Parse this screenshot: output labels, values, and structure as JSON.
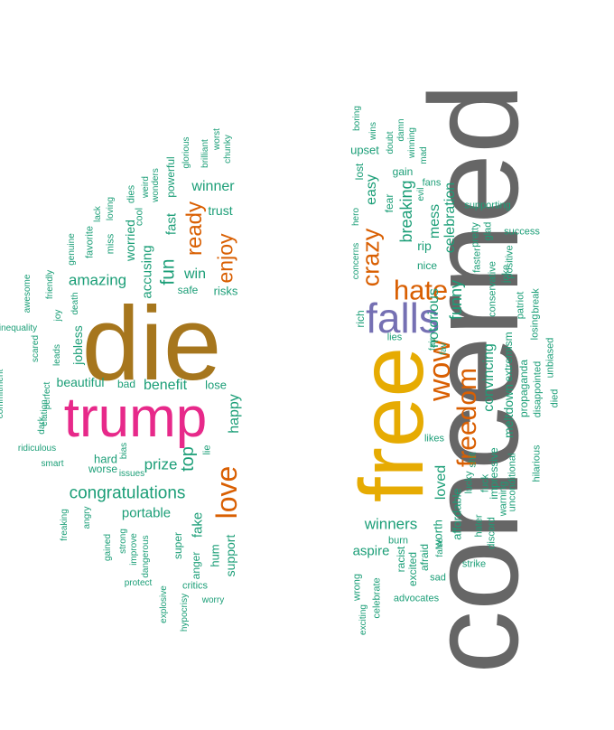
{
  "words": [
    {
      "text": "concerned",
      "color": "#666666",
      "rotated": true
    },
    {
      "text": "die",
      "color": "#a6761d",
      "rotated": false
    },
    {
      "text": "free",
      "color": "#e6ab02",
      "rotated": true
    },
    {
      "text": "trump",
      "color": "#e7298a",
      "rotated": false
    },
    {
      "text": "falls",
      "color": "#7570b3",
      "rotated": false
    },
    {
      "text": "hate",
      "color": "#d95f02",
      "rotated": false
    },
    {
      "text": "wow",
      "color": "#d95f02",
      "rotated": true
    },
    {
      "text": "love",
      "color": "#d95f02",
      "rotated": true
    },
    {
      "text": "freedom",
      "color": "#d95f02",
      "rotated": true
    },
    {
      "text": "crazy",
      "color": "#d95f02",
      "rotated": true
    },
    {
      "text": "ready",
      "color": "#d95f02",
      "rotated": true
    },
    {
      "text": "enjoy",
      "color": "#d95f02",
      "rotated": true
    },
    {
      "text": "congratulations",
      "color": "#1b9e77",
      "rotated": false
    },
    {
      "text": "amazing",
      "color": "#1b9e77",
      "rotated": false
    },
    {
      "text": "benefit",
      "color": "#1b9e77",
      "rotated": false
    },
    {
      "text": "winners",
      "color": "#1b9e77",
      "rotated": false
    },
    {
      "text": "winner",
      "color": "#1b9e77",
      "rotated": false
    },
    {
      "text": "prize",
      "color": "#1b9e77",
      "rotated": false
    },
    {
      "text": "portable",
      "color": "#1b9e77",
      "rotated": false
    },
    {
      "text": "beautiful",
      "color": "#1b9e77",
      "rotated": false
    },
    {
      "text": "top",
      "color": "#1b9e77",
      "rotated": true
    },
    {
      "text": "fun",
      "color": "#1b9e77",
      "rotated": true
    },
    {
      "text": "win",
      "color": "#1b9e77",
      "rotated": false
    },
    {
      "text": "happy",
      "color": "#1b9e77",
      "rotated": true
    },
    {
      "text": "breaking",
      "color": "#1b9e77",
      "rotated": true
    },
    {
      "text": "funny",
      "color": "#1b9e77",
      "rotated": true
    },
    {
      "text": "celebration",
      "color": "#1b9e77",
      "rotated": true
    },
    {
      "text": "convincing",
      "color": "#1b9e77",
      "rotated": true
    },
    {
      "text": "notorious",
      "color": "#1b9e77",
      "rotated": true
    },
    {
      "text": "easy",
      "color": "#1b9e77",
      "rotated": true
    },
    {
      "text": "mess",
      "color": "#1b9e77",
      "rotated": true
    },
    {
      "text": "loved",
      "color": "#1b9e77",
      "rotated": true
    },
    {
      "text": "worried",
      "color": "#1b9e77",
      "rotated": true
    },
    {
      "text": "accusing",
      "color": "#1b9e77",
      "rotated": true
    },
    {
      "text": "fast",
      "color": "#1b9e77",
      "rotated": true
    },
    {
      "text": "jobless",
      "color": "#1b9e77",
      "rotated": true
    },
    {
      "text": "fake",
      "color": "#1b9e77",
      "rotated": true
    },
    {
      "text": "support",
      "color": "#1b9e77",
      "rotated": true
    },
    {
      "text": "aspire",
      "color": "#1b9e77",
      "rotated": false
    },
    {
      "text": "meltdown",
      "color": "#1b9e77",
      "rotated": true
    },
    {
      "text": "trust",
      "color": "#1b9e77",
      "rotated": false
    },
    {
      "text": "rip",
      "color": "#1b9e77",
      "rotated": false
    },
    {
      "text": "gain",
      "color": "#1b9e77",
      "rotated": false
    },
    {
      "text": "nice",
      "color": "#1b9e77",
      "rotated": false
    },
    {
      "text": "lose",
      "color": "#1b9e77",
      "rotated": false
    },
    {
      "text": "hard",
      "color": "#1b9e77",
      "rotated": false
    },
    {
      "text": "worse",
      "color": "#1b9e77",
      "rotated": false
    },
    {
      "text": "risks",
      "color": "#1b9e77",
      "rotated": false
    },
    {
      "text": "safe",
      "color": "#1b9e77",
      "rotated": false
    },
    {
      "text": "bad",
      "color": "#1b9e77",
      "rotated": false
    },
    {
      "text": "upset",
      "color": "#1b9e77",
      "rotated": false
    },
    {
      "text": "fear",
      "color": "#1b9e77",
      "rotated": true
    },
    {
      "text": "lost",
      "color": "#1b9e77",
      "rotated": true
    },
    {
      "text": "fans",
      "color": "#1b9e77",
      "rotated": false
    },
    {
      "text": "rich",
      "color": "#1b9e77",
      "rotated": true
    },
    {
      "text": "hum",
      "color": "#1b9e77",
      "rotated": true
    },
    {
      "text": "super",
      "color": "#1b9e77",
      "rotated": true
    },
    {
      "text": "anger",
      "color": "#1b9e77",
      "rotated": true
    },
    {
      "text": "lie",
      "color": "#1b9e77",
      "rotated": true
    },
    {
      "text": "worth",
      "color": "#1b9e77",
      "rotated": true
    },
    {
      "text": "affordable",
      "color": "#1b9e77",
      "rotated": true
    },
    {
      "text": "extremism",
      "color": "#1b9e77",
      "rotated": true
    },
    {
      "text": "impressive",
      "color": "#1b9e77",
      "rotated": true
    },
    {
      "text": "propaganda",
      "color": "#1b9e77",
      "rotated": true
    },
    {
      "text": "conservative",
      "color": "#1b9e77",
      "rotated": true
    },
    {
      "text": "excited",
      "color": "#1b9e77",
      "rotated": true
    },
    {
      "text": "afraid",
      "color": "#1b9e77",
      "rotated": true
    },
    {
      "text": "racist",
      "color": "#1b9e77",
      "rotated": true
    },
    {
      "text": "celebrate",
      "color": "#1b9e77",
      "rotated": true
    },
    {
      "text": "wrong",
      "color": "#1b9e77",
      "rotated": true
    },
    {
      "text": "shit",
      "color": "#1b9e77",
      "rotated": true
    },
    {
      "text": "lucky",
      "color": "#1b9e77",
      "rotated": true
    },
    {
      "text": "fuck",
      "color": "#1b9e77",
      "rotated": true
    },
    {
      "text": "faster",
      "color": "#1b9e77",
      "rotated": true
    },
    {
      "text": "pretty",
      "color": "#1b9e77",
      "rotated": true
    },
    {
      "text": "glad",
      "color": "#1b9e77",
      "rotated": true
    },
    {
      "text": "unconditional",
      "color": "#1b9e77",
      "rotated": true
    },
    {
      "text": "warning",
      "color": "#1b9e77",
      "rotated": true
    },
    {
      "text": "hater",
      "color": "#1b9e77",
      "rotated": true
    },
    {
      "text": "discord",
      "color": "#1b9e77",
      "rotated": true
    },
    {
      "text": "disappointed",
      "color": "#1b9e77",
      "rotated": true
    },
    {
      "text": "hilarious",
      "color": "#1b9e77",
      "rotated": true
    },
    {
      "text": "unbiased",
      "color": "#1b9e77",
      "rotated": true
    },
    {
      "text": "died",
      "color": "#1b9e77",
      "rotated": true
    },
    {
      "text": "losing",
      "color": "#1b9e77",
      "rotated": true
    },
    {
      "text": "patriot",
      "color": "#1b9e77",
      "rotated": true
    },
    {
      "text": "joke",
      "color": "#1b9e77",
      "rotated": true
    },
    {
      "text": "positive",
      "color": "#1b9e77",
      "rotated": true
    },
    {
      "text": "break",
      "color": "#1b9e77",
      "rotated": true
    },
    {
      "text": "success",
      "color": "#1b9e77",
      "rotated": false
    },
    {
      "text": "supporting",
      "color": "#1b9e77",
      "rotated": false
    },
    {
      "text": "likes",
      "color": "#1b9e77",
      "rotated": false
    },
    {
      "text": "lies",
      "color": "#1b9e77",
      "rotated": false
    },
    {
      "text": "fair",
      "color": "#1b9e77",
      "rotated": true
    },
    {
      "text": "fav",
      "color": "#1b9e77",
      "rotated": true
    },
    {
      "text": "burn",
      "color": "#1b9e77",
      "rotated": false
    },
    {
      "text": "false",
      "color": "#1b9e77",
      "rotated": true
    },
    {
      "text": "sad",
      "color": "#1b9e77",
      "rotated": false
    },
    {
      "text": "strike",
      "color": "#1b9e77",
      "rotated": false
    },
    {
      "text": "advocates",
      "color": "#1b9e77",
      "rotated": false
    },
    {
      "text": "exciting",
      "color": "#1b9e77",
      "rotated": true
    },
    {
      "text": "concerns",
      "color": "#1b9e77",
      "rotated": true
    },
    {
      "text": "hero",
      "color": "#1b9e77",
      "rotated": true
    },
    {
      "text": "boring",
      "color": "#1b9e77",
      "rotated": true
    },
    {
      "text": "wins",
      "color": "#1b9e77",
      "rotated": true
    },
    {
      "text": "doubt",
      "color": "#1b9e77",
      "rotated": true
    },
    {
      "text": "damn",
      "color": "#1b9e77",
      "rotated": true
    },
    {
      "text": "winning",
      "color": "#1b9e77",
      "rotated": true
    },
    {
      "text": "mad",
      "color": "#1b9e77",
      "rotated": true
    },
    {
      "text": "evil",
      "color": "#1b9e77",
      "rotated": true
    },
    {
      "text": "glorious",
      "color": "#1b9e77",
      "rotated": true
    },
    {
      "text": "brilliant",
      "color": "#1b9e77",
      "rotated": true
    },
    {
      "text": "worst",
      "color": "#1b9e77",
      "rotated": true
    },
    {
      "text": "chunky",
      "color": "#1b9e77",
      "rotated": true
    },
    {
      "text": "powerful",
      "color": "#1b9e77",
      "rotated": true
    },
    {
      "text": "wonders",
      "color": "#1b9e77",
      "rotated": true
    },
    {
      "text": "weird",
      "color": "#1b9e77",
      "rotated": true
    },
    {
      "text": "dies",
      "color": "#1b9e77",
      "rotated": true
    },
    {
      "text": "cool",
      "color": "#1b9e77",
      "rotated": true
    },
    {
      "text": "loving",
      "color": "#1b9e77",
      "rotated": true
    },
    {
      "text": "miss",
      "color": "#1b9e77",
      "rotated": true
    },
    {
      "text": "lack",
      "color": "#1b9e77",
      "rotated": true
    },
    {
      "text": "favorite",
      "color": "#1b9e77",
      "rotated": true
    },
    {
      "text": "genuine",
      "color": "#1b9e77",
      "rotated": true
    },
    {
      "text": "death",
      "color": "#1b9e77",
      "rotated": true
    },
    {
      "text": "friendly",
      "color": "#1b9e77",
      "rotated": true
    },
    {
      "text": "joy",
      "color": "#1b9e77",
      "rotated": true
    },
    {
      "text": "awesome",
      "color": "#1b9e77",
      "rotated": true
    },
    {
      "text": "inequality",
      "color": "#1b9e77",
      "rotated": false
    },
    {
      "text": "leads",
      "color": "#1b9e77",
      "rotated": true
    },
    {
      "text": "scared",
      "color": "#1b9e77",
      "rotated": true
    },
    {
      "text": "perfect",
      "color": "#1b9e77",
      "rotated": true
    },
    {
      "text": "commitment",
      "color": "#1b9e77",
      "rotated": true
    },
    {
      "text": "dark",
      "color": "#1b9e77",
      "rotated": true
    },
    {
      "text": "elation",
      "color": "#1b9e77",
      "rotated": true
    },
    {
      "text": "ridiculous",
      "color": "#1b9e77",
      "rotated": false
    },
    {
      "text": "smart",
      "color": "#1b9e77",
      "rotated": false
    },
    {
      "text": "bias",
      "color": "#1b9e77",
      "rotated": true
    },
    {
      "text": "issues",
      "color": "#1b9e77",
      "rotated": false
    },
    {
      "text": "freaking",
      "color": "#1b9e77",
      "rotated": true
    },
    {
      "text": "angry",
      "color": "#1b9e77",
      "rotated": true
    },
    {
      "text": "gained",
      "color": "#1b9e77",
      "rotated": true
    },
    {
      "text": "strong",
      "color": "#1b9e77",
      "rotated": true
    },
    {
      "text": "improve",
      "color": "#1b9e77",
      "rotated": true
    },
    {
      "text": "dangerous",
      "color": "#1b9e77",
      "rotated": true
    },
    {
      "text": "protect",
      "color": "#1b9e77",
      "rotated": false
    },
    {
      "text": "explosive",
      "color": "#1b9e77",
      "rotated": true
    },
    {
      "text": "hypocrisy",
      "color": "#1b9e77",
      "rotated": true
    },
    {
      "text": "critics",
      "color": "#1b9e77",
      "rotated": false
    },
    {
      "text": "worry",
      "color": "#1b9e77",
      "rotated": false
    }
  ]
}
